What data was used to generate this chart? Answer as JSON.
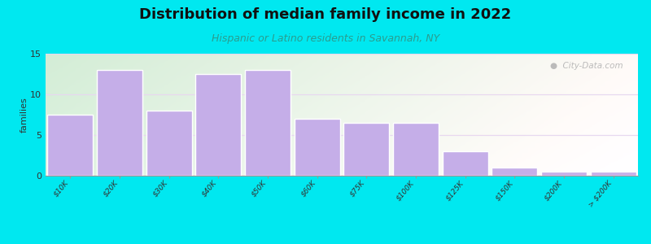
{
  "title": "Distribution of median family income in 2022",
  "subtitle": "Hispanic or Latino residents in Savannah, NY",
  "categories": [
    "$10K",
    "$20K",
    "$30K",
    "$40K",
    "$50K",
    "$60K",
    "$75K",
    "$100K",
    "$125K",
    "$150K",
    "$200K",
    "> $200K"
  ],
  "values": [
    7.5,
    13,
    8,
    12.5,
    13,
    7.0,
    6.5,
    6.5,
    3,
    1,
    0.5,
    0.5
  ],
  "bar_color": "#c5aee8",
  "bar_edge_color": "#ffffff",
  "background_color": "#00e8f0",
  "plot_bg_top_left": "#d4edda",
  "plot_bg_right": "#f8f8f0",
  "title_color": "#111111",
  "subtitle_color": "#2a9d8f",
  "ylabel": "families",
  "ylim": [
    0,
    15
  ],
  "yticks": [
    0,
    5,
    10,
    15
  ],
  "watermark": "City-Data.com",
  "title_fontsize": 13,
  "subtitle_fontsize": 9,
  "ylabel_fontsize": 8,
  "tick_fontsize": 6.5,
  "grid_color": "#e8d8f0",
  "spine_color": "#999999"
}
